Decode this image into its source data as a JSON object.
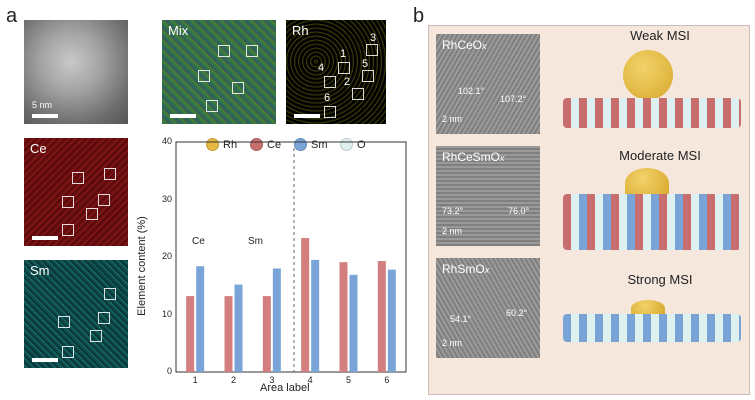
{
  "panel_a": {
    "letter": "a",
    "stem_scale": "5 nm",
    "mix_label": "Mix",
    "rh_label": "Rh",
    "ce_label": "Ce",
    "sm_label": "Sm",
    "rh_box_numbers": [
      "1",
      "2",
      "3",
      "4",
      "5",
      "6"
    ]
  },
  "chart_data": {
    "type": "bar",
    "categories": [
      "1",
      "2",
      "3",
      "4",
      "5",
      "6"
    ],
    "series": [
      {
        "name": "Ce",
        "values": [
          13.2,
          13.2,
          13.2,
          23.3,
          19.1,
          19.3
        ],
        "color": "#d47f7f"
      },
      {
        "name": "Sm",
        "values": [
          18.4,
          15.2,
          18.0,
          19.5,
          16.9,
          17.8
        ],
        "color": "#7aa3d8"
      }
    ],
    "xlabel": "Area label",
    "ylabel": "Element content (%)",
    "ylim": [
      0,
      40
    ],
    "yticks": [
      "0",
      "10",
      "20",
      "30",
      "40"
    ],
    "legend": [
      {
        "label": "Rh",
        "color": "#e4b93e"
      },
      {
        "label": "Ce",
        "color": "#c86e6e"
      },
      {
        "label": "Sm",
        "color": "#7aa3d8"
      },
      {
        "label": "O",
        "color": "#dff0f0"
      }
    ],
    "annotations": [
      "Ce",
      "Sm"
    ]
  },
  "panel_b": {
    "letter": "b",
    "rows": [
      {
        "sample": "RhCeO",
        "sub": "x",
        "msi": "Weak MSI",
        "angle_left": "102.1°",
        "angle_right": "107.2°",
        "scale": "2 nm"
      },
      {
        "sample": "RhCeSmO",
        "sub": "x",
        "msi": "Moderate MSI",
        "angle_left": "73.2°",
        "angle_right": "76.0°",
        "scale": "2 nm"
      },
      {
        "sample": "RhSmO",
        "sub": "x",
        "msi": "Strong MSI",
        "angle_left": "54.1°",
        "angle_right": "60.2°",
        "scale": "2 nm"
      }
    ]
  },
  "colors": {
    "rh": "#e4b93e",
    "ce": "#c86e6e",
    "sm": "#7aa3d8",
    "o": "#dff0f0",
    "b_bg": "#f6e7dd"
  }
}
